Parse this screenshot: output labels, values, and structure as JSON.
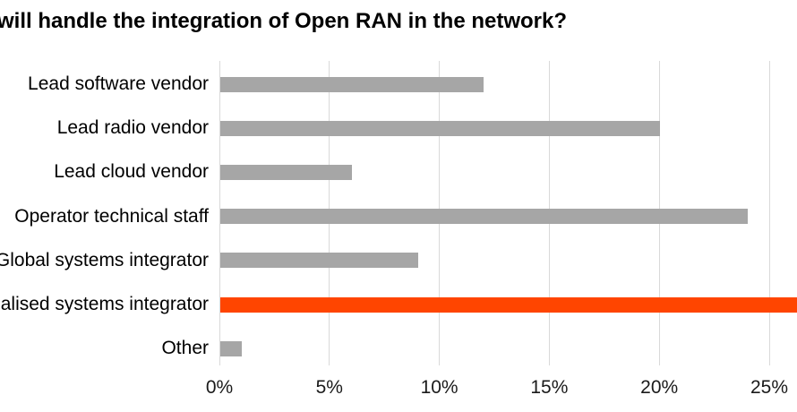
{
  "chart_data": {
    "type": "bar",
    "orientation": "horizontal",
    "title": "will handle the integration of Open RAN in the network?",
    "title_note": "title is cropped at the left edge of the image",
    "categories": [
      "Lead software vendor",
      "Lead radio vendor",
      "Lead cloud vendor",
      "Operator technical staff",
      "Global systems integrator",
      "Specialised systems integrator",
      "Other"
    ],
    "values": [
      12,
      20,
      6,
      24,
      9,
      28,
      1
    ],
    "value_unit": "%",
    "highlight_index": 5,
    "highlight_clipped_at_right_edge": true,
    "bar_color": "#A6A6A6",
    "highlight_color": "#FF4500",
    "gridline_color": "#D9D9D9",
    "x_ticks": [
      "0%",
      "5%",
      "10%",
      "15%",
      "20%",
      "25%"
    ],
    "x_tick_values": [
      0,
      5,
      10,
      15,
      20,
      25
    ],
    "xlim": [
      0,
      26.3
    ],
    "grid": true,
    "legend": "none"
  }
}
